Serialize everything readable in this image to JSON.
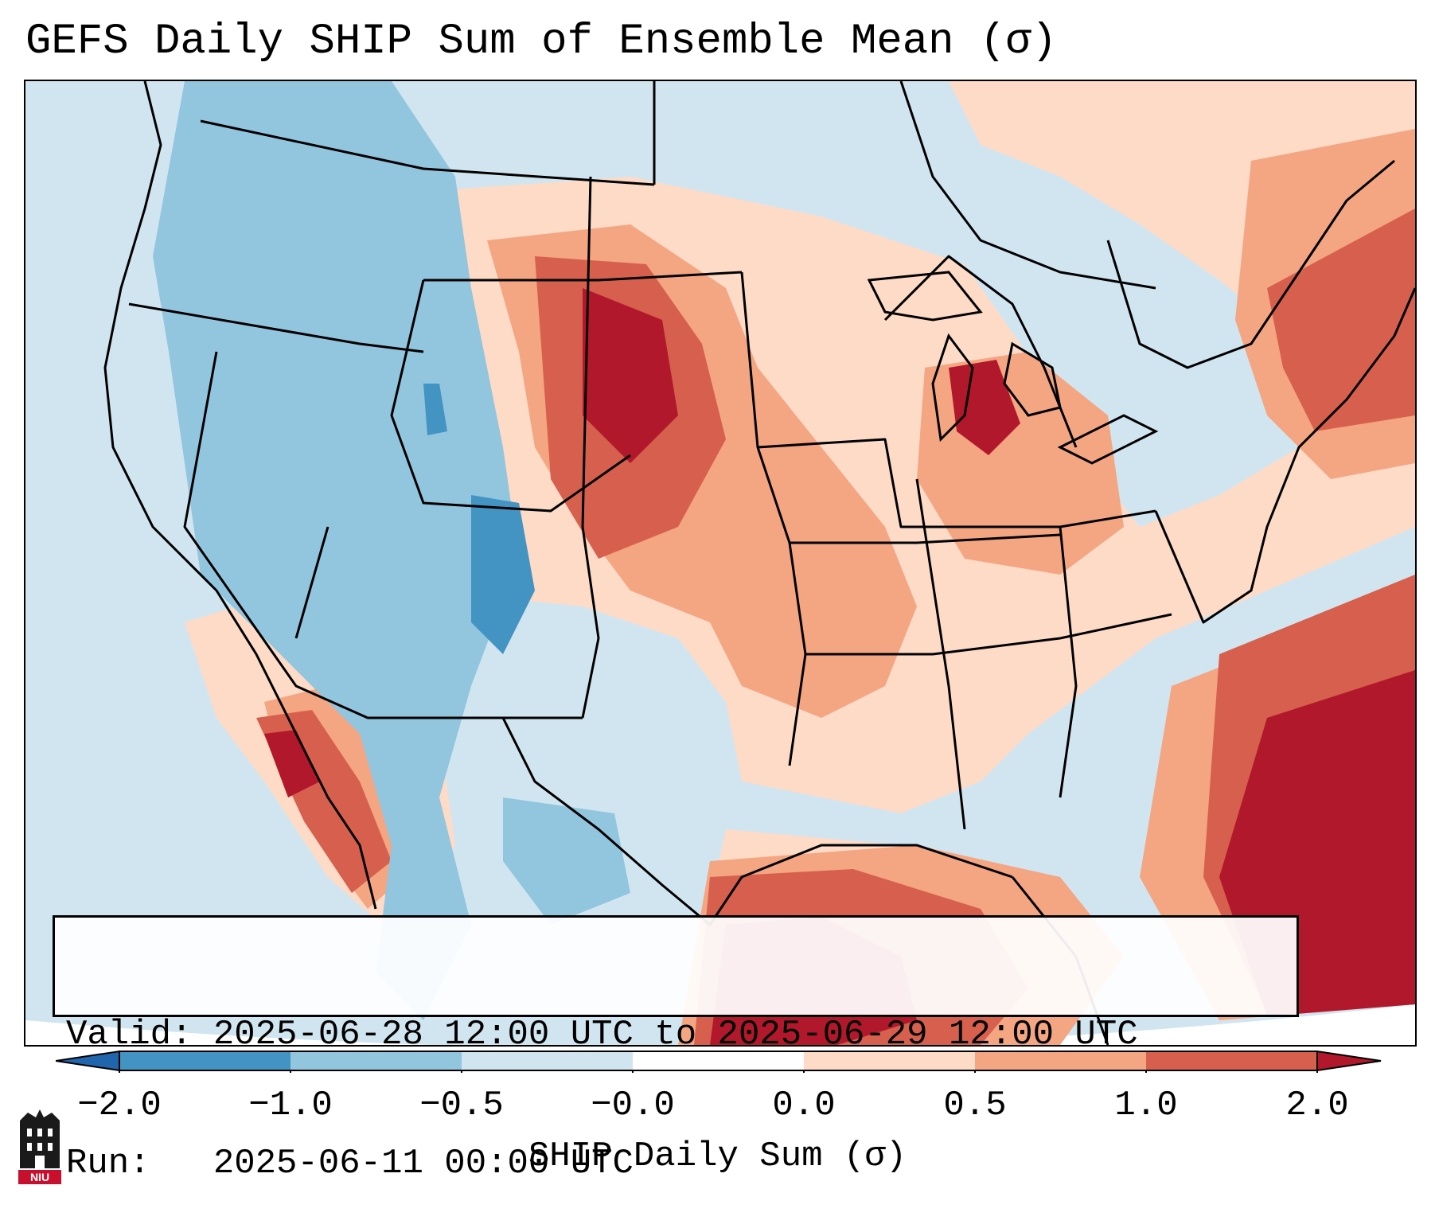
{
  "title": "GEFS Daily SHIP Sum of Ensemble Mean (σ)",
  "info": {
    "valid_label": "Valid:",
    "valid_value": "2025-06-28 12:00 UTC to 2025-06-29 12:00 UTC",
    "run_label": "Run:",
    "run_value": "2025-06-11 00:00 UTC"
  },
  "colorbar": {
    "label": "SHIP Daily Sum (σ)",
    "ticks": [
      "−2.0",
      "−1.0",
      "−0.5",
      "−0.0",
      "0.0",
      "0.5",
      "1.0",
      "2.0"
    ],
    "bin_colors": [
      "#2166ac",
      "#4393c3",
      "#92c5de",
      "#d1e5f0",
      "#ffffff",
      "#fddbc7",
      "#f4a582",
      "#d6604d",
      "#b2182b",
      "#67001f"
    ]
  },
  "logo": {
    "text": "NIU"
  }
}
